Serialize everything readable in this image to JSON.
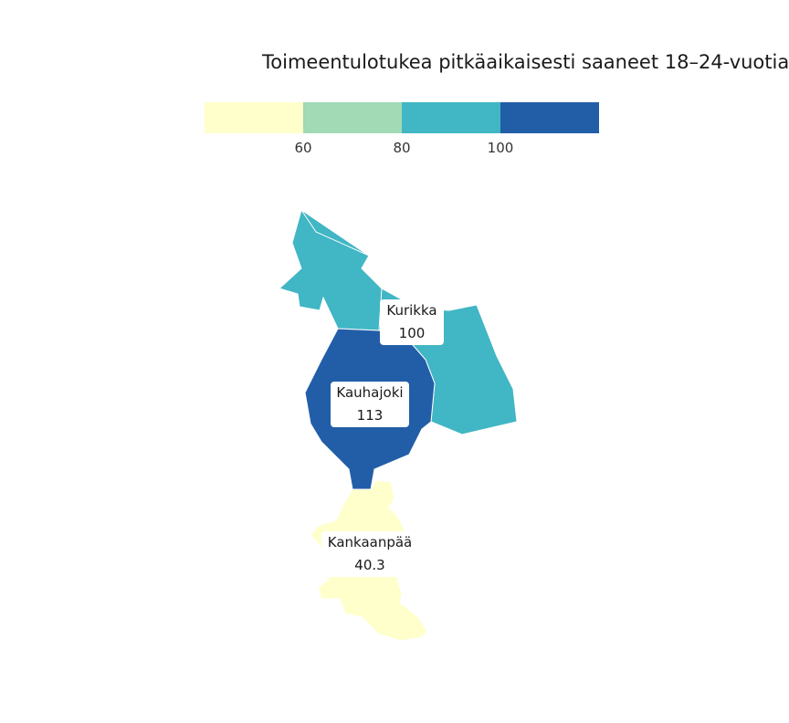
{
  "title": "Toimeentulotukea pitkäaikaisesti saaneet 18–24-vuotiaat",
  "legend": {
    "colors": [
      "#ffffcc",
      "#a1dab4",
      "#41b6c4",
      "#225ea8"
    ],
    "breaks": [
      "60",
      "80",
      "100"
    ]
  },
  "regions": [
    {
      "name": "Kurikka",
      "value": "100",
      "color": "#41b6c4"
    },
    {
      "name": "Kauhajoki",
      "value": "113",
      "color": "#225ea8"
    },
    {
      "name": "Kankaanpää",
      "value": "40.3",
      "color": "#ffffcc"
    }
  ]
}
